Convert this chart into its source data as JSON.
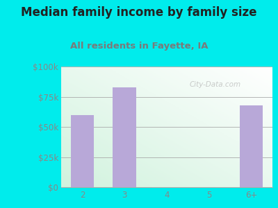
{
  "title": "Median family income by family size",
  "subtitle": "All residents in Fayette, IA",
  "categories": [
    "2",
    "3",
    "4",
    "5",
    "6+"
  ],
  "values": [
    60000,
    83000,
    0,
    0,
    68000
  ],
  "bar_color": "#b8a8d8",
  "background_outer": "#00ecec",
  "yticks": [
    0,
    25000,
    50000,
    75000,
    100000
  ],
  "ytick_labels": [
    "$0",
    "$25k",
    "$50k",
    "$75k",
    "$100k"
  ],
  "ylim": [
    0,
    100000
  ],
  "title_fontsize": 12,
  "subtitle_fontsize": 9.5,
  "title_color": "#222222",
  "subtitle_color": "#7a7a7a",
  "tick_color": "#888888",
  "watermark": "City-Data.com"
}
